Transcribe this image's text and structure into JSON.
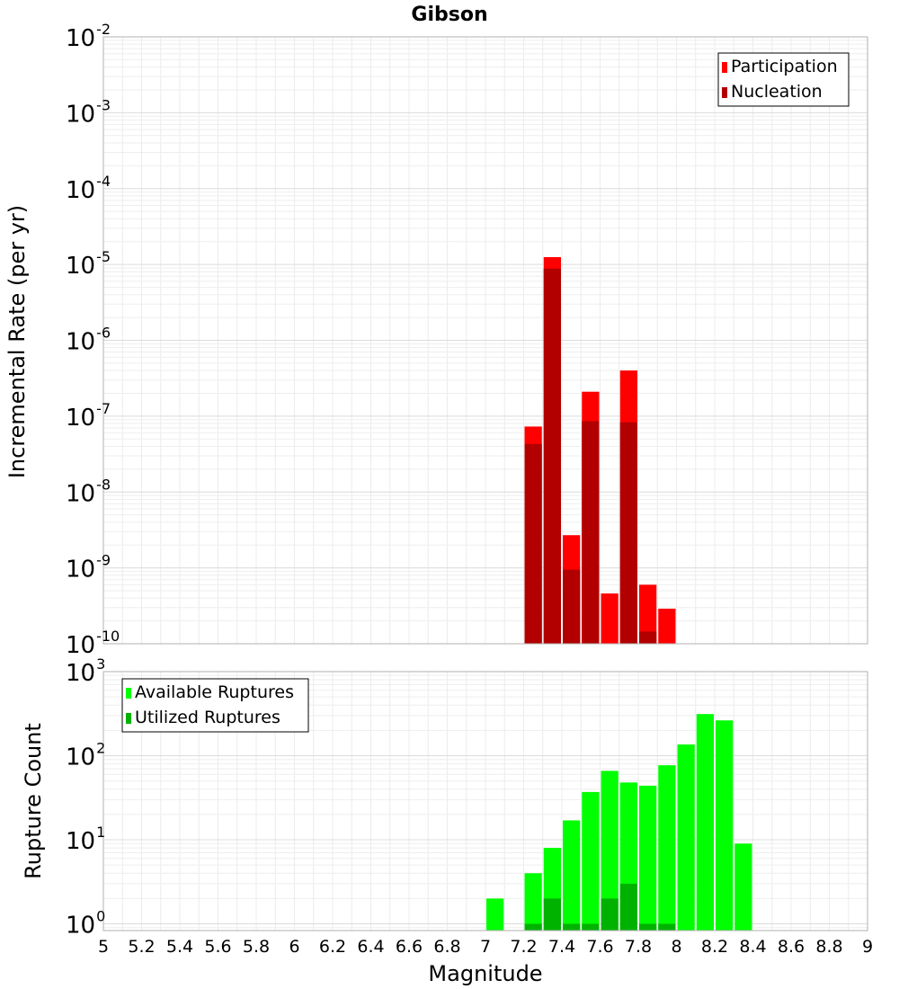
{
  "chart_data": [
    {
      "type": "bar",
      "title": "Gibson",
      "ylabel": "Incremental Rate (per yr)",
      "yscale": "log",
      "ylim_exponents": [
        -10,
        -2
      ],
      "y_tick_base": "10",
      "xlim": [
        5,
        9
      ],
      "bar_width": 0.1,
      "grid": true,
      "legend_position": "top-right",
      "series": [
        {
          "name": "Participation",
          "color": "#ff0000",
          "points": [
            {
              "x": 7.25,
              "y": 7.3e-08
            },
            {
              "x": 7.35,
              "y": 1.25e-05
            },
            {
              "x": 7.45,
              "y": 2.7e-09
            },
            {
              "x": 7.55,
              "y": 2.1e-07
            },
            {
              "x": 7.65,
              "y": 4.6e-10
            },
            {
              "x": 7.75,
              "y": 4e-07
            },
            {
              "x": 7.85,
              "y": 6e-10
            },
            {
              "x": 7.95,
              "y": 2.9e-10
            }
          ]
        },
        {
          "name": "Nucleation",
          "color": "#b20000",
          "points": [
            {
              "x": 7.25,
              "y": 4.3e-08
            },
            {
              "x": 7.35,
              "y": 8.8e-06
            },
            {
              "x": 7.45,
              "y": 9.5e-10
            },
            {
              "x": 7.55,
              "y": 8.6e-08
            },
            {
              "x": 7.75,
              "y": 8.3e-08
            },
            {
              "x": 7.85,
              "y": 1.45e-10
            }
          ]
        }
      ]
    },
    {
      "type": "bar",
      "ylabel": "Rupture Count",
      "xlabel": "Magnitude",
      "yscale": "log",
      "ylim_exponents": [
        -0.08,
        3
      ],
      "y_tick_exponents": [
        0,
        1,
        2,
        3
      ],
      "y_tick_base": "10",
      "xlim": [
        5,
        9
      ],
      "x_ticks": [
        "5",
        "5.2",
        "5.4",
        "5.6",
        "5.8",
        "6",
        "6.2",
        "6.4",
        "6.6",
        "6.8",
        "7",
        "7.2",
        "7.4",
        "7.6",
        "7.8",
        "8",
        "8.2",
        "8.4",
        "8.6",
        "8.8",
        "9"
      ],
      "bar_width": 0.1,
      "grid": true,
      "legend_position": "top-left",
      "series": [
        {
          "name": "Available Ruptures",
          "color": "#00ff00",
          "points": [
            {
              "x": 7.05,
              "y": 2
            },
            {
              "x": 7.25,
              "y": 4
            },
            {
              "x": 7.35,
              "y": 8
            },
            {
              "x": 7.45,
              "y": 17
            },
            {
              "x": 7.55,
              "y": 37
            },
            {
              "x": 7.65,
              "y": 66
            },
            {
              "x": 7.75,
              "y": 48
            },
            {
              "x": 7.85,
              "y": 44
            },
            {
              "x": 7.95,
              "y": 77
            },
            {
              "x": 8.05,
              "y": 136
            },
            {
              "x": 8.15,
              "y": 313
            },
            {
              "x": 8.25,
              "y": 263
            },
            {
              "x": 8.35,
              "y": 9
            }
          ]
        },
        {
          "name": "Utilized Ruptures",
          "color": "#00b200",
          "points": [
            {
              "x": 7.25,
              "y": 1
            },
            {
              "x": 7.35,
              "y": 2
            },
            {
              "x": 7.45,
              "y": 1
            },
            {
              "x": 7.55,
              "y": 1
            },
            {
              "x": 7.65,
              "y": 2
            },
            {
              "x": 7.75,
              "y": 3
            },
            {
              "x": 7.85,
              "y": 1
            },
            {
              "x": 7.95,
              "y": 1
            }
          ]
        }
      ]
    }
  ]
}
